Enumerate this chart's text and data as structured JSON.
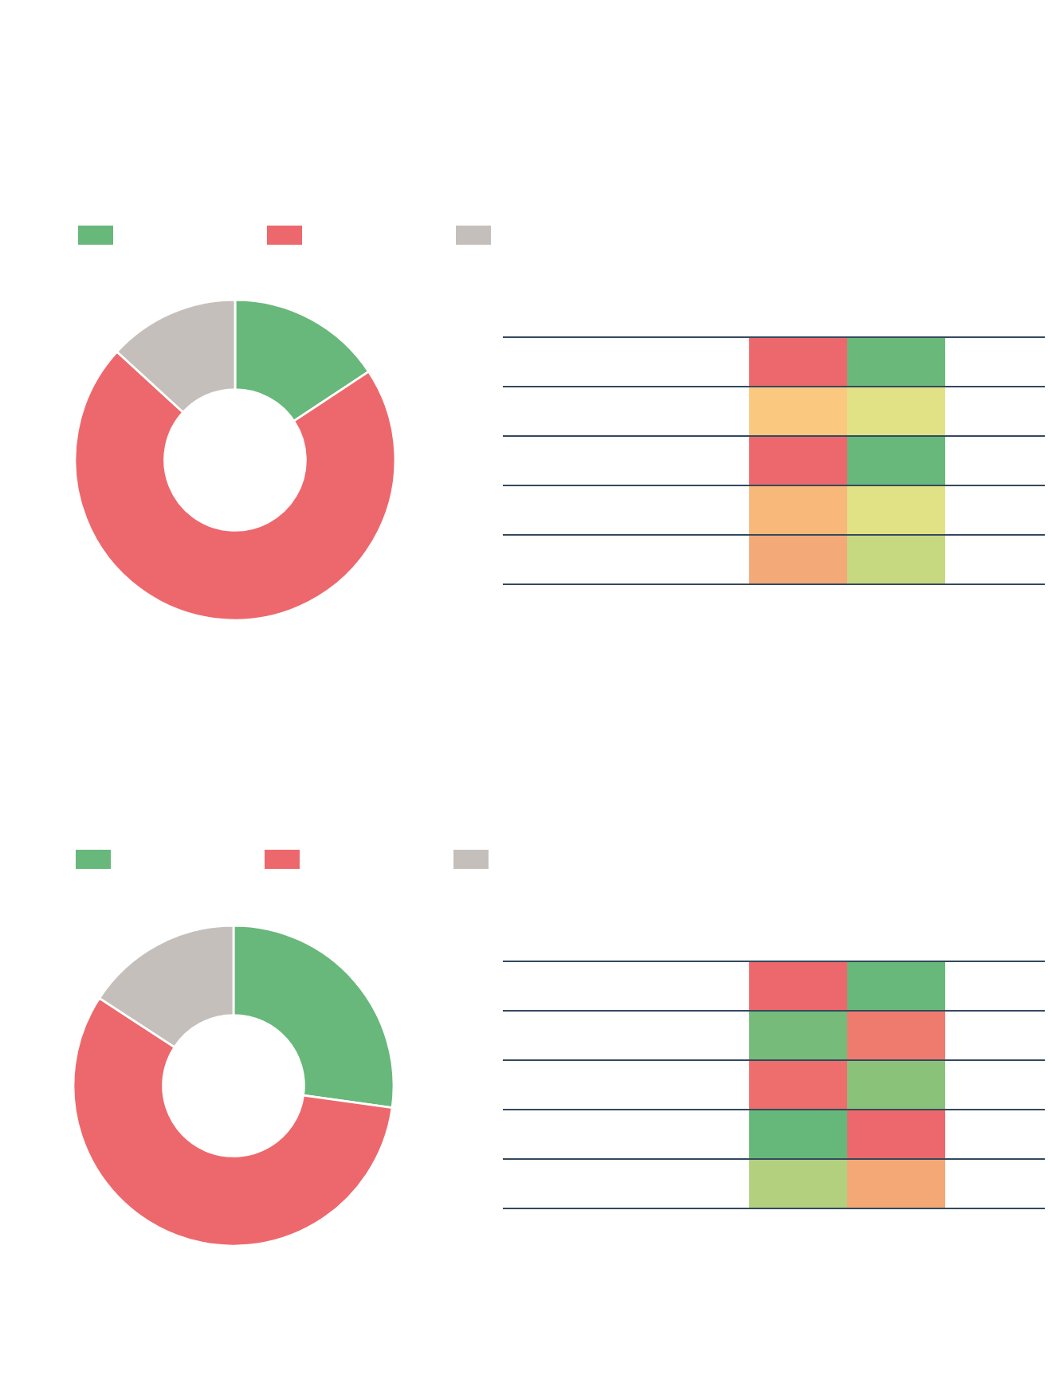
{
  "chart_data": [
    {
      "type": "donut",
      "categories": [
        null,
        null,
        null
      ],
      "values": [
        15.7,
        71.1,
        13.2
      ],
      "colors": [
        "#67b87a",
        "#ed686c",
        "#c5bfbc"
      ]
    },
    {
      "type": "donut",
      "categories": [
        null,
        null,
        null
      ],
      "values": [
        27.2,
        57.0,
        15.8
      ],
      "colors": [
        "#67b87a",
        "#ed686c",
        "#c5bfbc"
      ]
    }
  ]
}
